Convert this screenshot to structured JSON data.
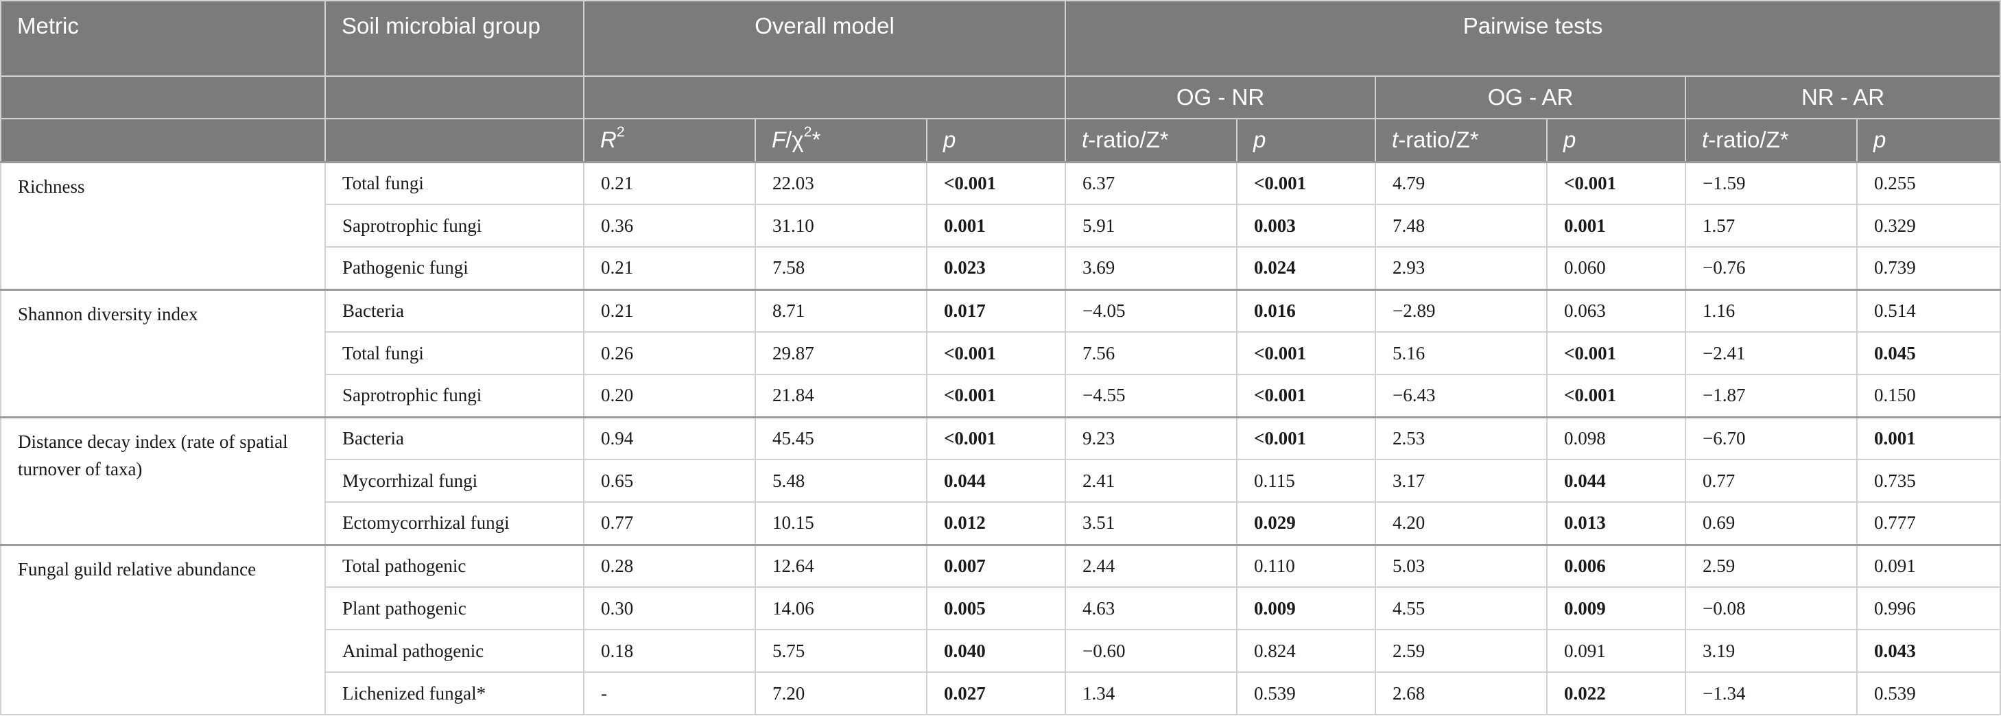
{
  "header": {
    "metric": "Metric",
    "group": "Soil microbial group",
    "overall": "Overall model",
    "pairwise": "Pairwise tests",
    "pairs": [
      "OG - NR",
      "OG - AR",
      "NR - AR"
    ],
    "r2_base": "R",
    "r2_sup": "2",
    "f_label_it": "F",
    "f_label_rest": "/χ",
    "f_sup": "2",
    "f_star": "*",
    "p": "p",
    "t_it": "t",
    "t_rest": "-ratio/Z*"
  },
  "rows": [
    {
      "metric": "Richness",
      "span": 3,
      "group": "Total fungi",
      "r2": "0.21",
      "f": "22.03",
      "p": "<0.001",
      "pb": true,
      "og_nr_t": "6.37",
      "og_nr_p": "<0.001",
      "og_nr_pb": true,
      "og_ar_t": "4.79",
      "og_ar_p": "<0.001",
      "og_ar_pb": true,
      "nr_ar_t": "−1.59",
      "nr_ar_p": "0.255",
      "nr_ar_pb": false
    },
    {
      "group": "Saprotrophic fungi",
      "r2": "0.36",
      "f": "31.10",
      "p": "0.001",
      "pb": true,
      "og_nr_t": "5.91",
      "og_nr_p": "0.003",
      "og_nr_pb": true,
      "og_ar_t": "7.48",
      "og_ar_p": "0.001",
      "og_ar_pb": true,
      "nr_ar_t": "1.57",
      "nr_ar_p": "0.329",
      "nr_ar_pb": false
    },
    {
      "group": "Pathogenic fungi",
      "r2": "0.21",
      "f": "7.58",
      "p": "0.023",
      "pb": true,
      "og_nr_t": "3.69",
      "og_nr_p": "0.024",
      "og_nr_pb": true,
      "og_ar_t": "2.93",
      "og_ar_p": "0.060",
      "og_ar_pb": false,
      "nr_ar_t": "−0.76",
      "nr_ar_p": "0.739",
      "nr_ar_pb": false
    },
    {
      "metric": "Shannon diversity index",
      "span": 3,
      "group": "Bacteria",
      "r2": "0.21",
      "f": "8.71",
      "p": "0.017",
      "pb": true,
      "og_nr_t": "−4.05",
      "og_nr_p": "0.016",
      "og_nr_pb": true,
      "og_ar_t": "−2.89",
      "og_ar_p": "0.063",
      "og_ar_pb": false,
      "nr_ar_t": "1.16",
      "nr_ar_p": "0.514",
      "nr_ar_pb": false
    },
    {
      "group": "Total fungi",
      "r2": "0.26",
      "f": "29.87",
      "p": "<0.001",
      "pb": true,
      "og_nr_t": "7.56",
      "og_nr_p": "<0.001",
      "og_nr_pb": true,
      "og_ar_t": "5.16",
      "og_ar_p": "<0.001",
      "og_ar_pb": true,
      "nr_ar_t": "−2.41",
      "nr_ar_p": "0.045",
      "nr_ar_pb": true
    },
    {
      "group": "Saprotrophic fungi",
      "r2": "0.20",
      "f": "21.84",
      "p": "<0.001",
      "pb": true,
      "og_nr_t": "−4.55",
      "og_nr_p": "<0.001",
      "og_nr_pb": true,
      "og_ar_t": "−6.43",
      "og_ar_p": "<0.001",
      "og_ar_pb": true,
      "nr_ar_t": "−1.87",
      "nr_ar_p": "0.150",
      "nr_ar_pb": false
    },
    {
      "metric": "Distance decay index (rate of spatial turnover of taxa)",
      "span": 3,
      "group": "Bacteria",
      "r2": "0.94",
      "f": "45.45",
      "p": "<0.001",
      "pb": true,
      "og_nr_t": "9.23",
      "og_nr_p": "<0.001",
      "og_nr_pb": true,
      "og_ar_t": "2.53",
      "og_ar_p": "0.098",
      "og_ar_pb": false,
      "nr_ar_t": "−6.70",
      "nr_ar_p": "0.001",
      "nr_ar_pb": true
    },
    {
      "group": "Mycorrhizal fungi",
      "r2": "0.65",
      "f": "5.48",
      "p": "0.044",
      "pb": true,
      "og_nr_t": "2.41",
      "og_nr_p": "0.115",
      "og_nr_pb": false,
      "og_ar_t": "3.17",
      "og_ar_p": "0.044",
      "og_ar_pb": true,
      "nr_ar_t": "0.77",
      "nr_ar_p": "0.735",
      "nr_ar_pb": false
    },
    {
      "group": "Ectomycorrhizal fungi",
      "r2": "0.77",
      "f": "10.15",
      "p": "0.012",
      "pb": true,
      "og_nr_t": "3.51",
      "og_nr_p": "0.029",
      "og_nr_pb": true,
      "og_ar_t": "4.20",
      "og_ar_p": "0.013",
      "og_ar_pb": true,
      "nr_ar_t": "0.69",
      "nr_ar_p": "0.777",
      "nr_ar_pb": false
    },
    {
      "metric": "Fungal guild relative abundance",
      "span": 4,
      "group": "Total pathogenic",
      "r2": "0.28",
      "f": "12.64",
      "p": "0.007",
      "pb": true,
      "og_nr_t": "2.44",
      "og_nr_p": "0.110",
      "og_nr_pb": false,
      "og_ar_t": "5.03",
      "og_ar_p": "0.006",
      "og_ar_pb": true,
      "nr_ar_t": "2.59",
      "nr_ar_p": "0.091",
      "nr_ar_pb": false
    },
    {
      "group": "Plant pathogenic",
      "r2": "0.30",
      "f": "14.06",
      "p": "0.005",
      "pb": true,
      "og_nr_t": "4.63",
      "og_nr_p": "0.009",
      "og_nr_pb": true,
      "og_ar_t": "4.55",
      "og_ar_p": "0.009",
      "og_ar_pb": true,
      "nr_ar_t": "−0.08",
      "nr_ar_p": "0.996",
      "nr_ar_pb": false
    },
    {
      "group": "Animal pathogenic",
      "r2": "0.18",
      "f": "5.75",
      "p": "0.040",
      "pb": true,
      "og_nr_t": "−0.60",
      "og_nr_p": "0.824",
      "og_nr_pb": false,
      "og_ar_t": "2.59",
      "og_ar_p": "0.091",
      "og_ar_pb": false,
      "nr_ar_t": "3.19",
      "nr_ar_p": "0.043",
      "nr_ar_pb": true
    },
    {
      "group": "Lichenized fungal*",
      "r2": "-",
      "f": "7.20",
      "p": "0.027",
      "pb": true,
      "og_nr_t": "1.34",
      "og_nr_p": "0.539",
      "og_nr_pb": false,
      "og_ar_t": "2.68",
      "og_ar_p": "0.022",
      "og_ar_pb": true,
      "nr_ar_t": "−1.34",
      "nr_ar_p": "0.539",
      "nr_ar_pb": false
    }
  ]
}
